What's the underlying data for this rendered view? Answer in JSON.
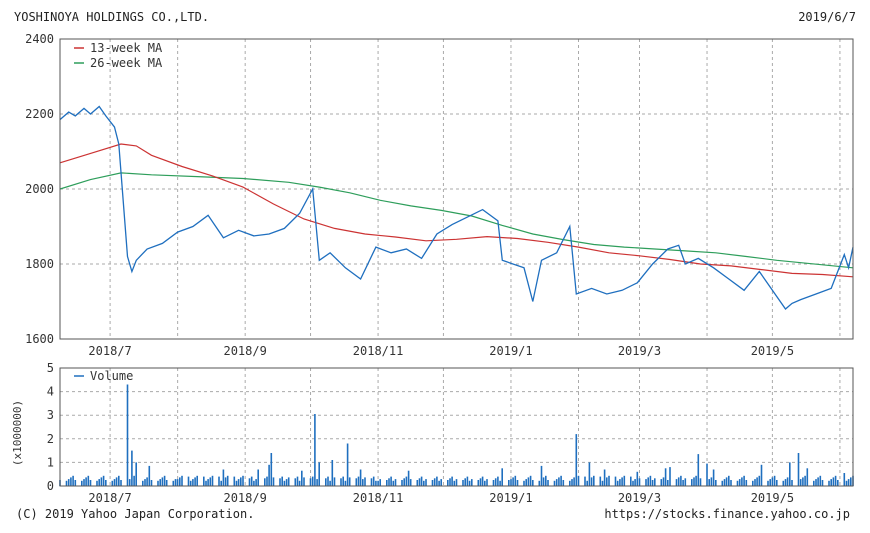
{
  "header": {
    "company": "YOSHINOYA HOLDINGS CO.,LTD.",
    "date": "2019/6/7"
  },
  "footer": {
    "copyright": "(C) 2019 Yahoo Japan Corporation.",
    "source": "https://stocks.finance.yahoo.co.jp"
  },
  "colors": {
    "price": "#1f6fbf",
    "ma13": "#cc3333",
    "ma26": "#2e9e5b",
    "volume": "#1f6fbf",
    "grid": "#aaaaaa"
  },
  "chart_data": [
    {
      "type": "line",
      "x_ticks": [
        "2018/7",
        "2018/9",
        "2018/11",
        "2019/1",
        "2019/3",
        "2019/5"
      ],
      "y_ticks": [
        1600,
        1800,
        2000,
        2200,
        2400
      ],
      "ylim": [
        1600,
        2400
      ],
      "xlim": [
        "2018-06-08",
        "2019-06-07"
      ],
      "grid": true,
      "legend": "top-left",
      "series": [
        {
          "name": "",
          "role": "price",
          "points": [
            [
              "2018-06-08",
              2185
            ],
            [
              "2018-06-12",
              2205
            ],
            [
              "2018-06-15",
              2195
            ],
            [
              "2018-06-19",
              2215
            ],
            [
              "2018-06-22",
              2200
            ],
            [
              "2018-06-26",
              2220
            ],
            [
              "2018-06-29",
              2195
            ],
            [
              "2018-07-03",
              2165
            ],
            [
              "2018-07-05",
              2120
            ],
            [
              "2018-07-09",
              1820
            ],
            [
              "2018-07-11",
              1780
            ],
            [
              "2018-07-13",
              1810
            ],
            [
              "2018-07-18",
              1840
            ],
            [
              "2018-07-25",
              1855
            ],
            [
              "2018-08-01",
              1885
            ],
            [
              "2018-08-08",
              1900
            ],
            [
              "2018-08-15",
              1930
            ],
            [
              "2018-08-22",
              1870
            ],
            [
              "2018-08-29",
              1890
            ],
            [
              "2018-09-05",
              1875
            ],
            [
              "2018-09-12",
              1880
            ],
            [
              "2018-09-19",
              1895
            ],
            [
              "2018-09-26",
              1935
            ],
            [
              "2018-10-02",
              2000
            ],
            [
              "2018-10-05",
              1810
            ],
            [
              "2018-10-10",
              1830
            ],
            [
              "2018-10-17",
              1790
            ],
            [
              "2018-10-24",
              1760
            ],
            [
              "2018-10-31",
              1845
            ],
            [
              "2018-11-07",
              1830
            ],
            [
              "2018-11-14",
              1840
            ],
            [
              "2018-11-21",
              1815
            ],
            [
              "2018-11-28",
              1880
            ],
            [
              "2018-12-05",
              1905
            ],
            [
              "2018-12-12",
              1925
            ],
            [
              "2018-12-19",
              1945
            ],
            [
              "2018-12-26",
              1915
            ],
            [
              "2018-12-28",
              1810
            ],
            [
              "2019-01-07",
              1790
            ],
            [
              "2019-01-11",
              1700
            ],
            [
              "2019-01-15",
              1810
            ],
            [
              "2019-01-22",
              1830
            ],
            [
              "2019-01-28",
              1900
            ],
            [
              "2019-01-31",
              1720
            ],
            [
              "2019-02-07",
              1735
            ],
            [
              "2019-02-14",
              1720
            ],
            [
              "2019-02-21",
              1730
            ],
            [
              "2019-02-28",
              1750
            ],
            [
              "2019-03-07",
              1800
            ],
            [
              "2019-03-14",
              1840
            ],
            [
              "2019-03-19",
              1850
            ],
            [
              "2019-03-22",
              1800
            ],
            [
              "2019-03-28",
              1815
            ],
            [
              "2019-04-04",
              1790
            ],
            [
              "2019-04-11",
              1760
            ],
            [
              "2019-04-18",
              1730
            ],
            [
              "2019-04-25",
              1780
            ],
            [
              "2019-05-07",
              1680
            ],
            [
              "2019-05-10",
              1695
            ],
            [
              "2019-05-14",
              1705
            ],
            [
              "2019-05-21",
              1720
            ],
            [
              "2019-05-28",
              1735
            ],
            [
              "2019-06-03",
              1825
            ],
            [
              "2019-06-05",
              1790
            ],
            [
              "2019-06-07",
              1845
            ]
          ]
        },
        {
          "name": "13-week MA",
          "role": "ma13",
          "points": [
            [
              "2018-06-08",
              2070
            ],
            [
              "2018-06-22",
              2095
            ],
            [
              "2018-07-06",
              2120
            ],
            [
              "2018-07-13",
              2115
            ],
            [
              "2018-07-20",
              2090
            ],
            [
              "2018-08-03",
              2060
            ],
            [
              "2018-08-17",
              2035
            ],
            [
              "2018-08-31",
              2005
            ],
            [
              "2018-09-14",
              1960
            ],
            [
              "2018-09-28",
              1920
            ],
            [
              "2018-10-12",
              1895
            ],
            [
              "2018-10-26",
              1880
            ],
            [
              "2018-11-09",
              1872
            ],
            [
              "2018-11-23",
              1862
            ],
            [
              "2018-12-07",
              1866
            ],
            [
              "2018-12-21",
              1873
            ],
            [
              "2019-01-04",
              1868
            ],
            [
              "2019-01-18",
              1858
            ],
            [
              "2019-02-01",
              1845
            ],
            [
              "2019-02-15",
              1830
            ],
            [
              "2019-03-01",
              1822
            ],
            [
              "2019-03-15",
              1812
            ],
            [
              "2019-03-29",
              1800
            ],
            [
              "2019-04-12",
              1795
            ],
            [
              "2019-04-26",
              1785
            ],
            [
              "2019-05-10",
              1775
            ],
            [
              "2019-05-24",
              1772
            ],
            [
              "2019-06-07",
              1766
            ]
          ]
        },
        {
          "name": "26-week MA",
          "role": "ma26",
          "points": [
            [
              "2018-06-08",
              2000
            ],
            [
              "2018-06-22",
              2025
            ],
            [
              "2018-07-06",
              2043
            ],
            [
              "2018-07-20",
              2038
            ],
            [
              "2018-08-10",
              2033
            ],
            [
              "2018-08-31",
              2028
            ],
            [
              "2018-09-21",
              2018
            ],
            [
              "2018-10-05",
              2005
            ],
            [
              "2018-10-19",
              1990
            ],
            [
              "2018-11-02",
              1970
            ],
            [
              "2018-11-16",
              1955
            ],
            [
              "2018-11-30",
              1943
            ],
            [
              "2018-12-14",
              1928
            ],
            [
              "2018-12-28",
              1903
            ],
            [
              "2019-01-11",
              1880
            ],
            [
              "2019-01-25",
              1865
            ],
            [
              "2019-02-08",
              1852
            ],
            [
              "2019-02-22",
              1845
            ],
            [
              "2019-03-08",
              1840
            ],
            [
              "2019-03-22",
              1835
            ],
            [
              "2019-04-05",
              1830
            ],
            [
              "2019-04-19",
              1820
            ],
            [
              "2019-05-03",
              1810
            ],
            [
              "2019-05-17",
              1802
            ],
            [
              "2019-06-07",
              1790
            ]
          ]
        }
      ]
    },
    {
      "type": "bar",
      "ylabel": "(x1000000)",
      "y_ticks": [
        0,
        1,
        2,
        3,
        4,
        5
      ],
      "ylim": [
        0,
        5
      ],
      "grid": true,
      "legend": "top-left",
      "series": [
        {
          "name": "Volume",
          "role": "volume",
          "baseline": 0.3,
          "spikes": [
            [
              "2018-07-09",
              4.3
            ],
            [
              "2018-07-11",
              1.5
            ],
            [
              "2018-07-13",
              1.0
            ],
            [
              "2018-07-19",
              0.85
            ],
            [
              "2018-08-22",
              0.7
            ],
            [
              "2018-09-07",
              0.7
            ],
            [
              "2018-09-12",
              0.9
            ],
            [
              "2018-09-13",
              1.4
            ],
            [
              "2018-09-27",
              0.65
            ],
            [
              "2018-10-03",
              3.05
            ],
            [
              "2018-10-05",
              1.0
            ],
            [
              "2018-10-11",
              1.1
            ],
            [
              "2018-10-18",
              1.8
            ],
            [
              "2018-10-24",
              0.7
            ],
            [
              "2018-11-15",
              0.65
            ],
            [
              "2018-12-28",
              0.75
            ],
            [
              "2019-01-15",
              0.85
            ],
            [
              "2019-01-31",
              2.2
            ],
            [
              "2019-02-06",
              1.0
            ],
            [
              "2019-02-13",
              0.7
            ],
            [
              "2019-02-28",
              0.6
            ],
            [
              "2019-03-13",
              0.75
            ],
            [
              "2019-03-15",
              0.8
            ],
            [
              "2019-03-28",
              1.35
            ],
            [
              "2019-04-01",
              0.95
            ],
            [
              "2019-04-04",
              0.7
            ],
            [
              "2019-04-26",
              0.9
            ],
            [
              "2019-05-09",
              1.0
            ],
            [
              "2019-05-13",
              1.4
            ],
            [
              "2019-05-17",
              0.75
            ],
            [
              "2019-06-03",
              0.55
            ]
          ]
        }
      ]
    }
  ]
}
